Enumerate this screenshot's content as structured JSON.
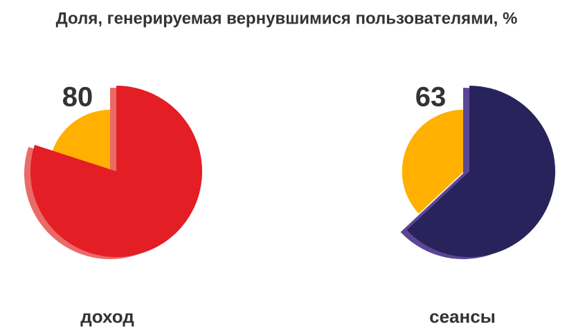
{
  "title": "Доля, генерируемая вернувшимися пользователями, %",
  "chart_data": [
    {
      "type": "pie",
      "label": "доход",
      "values": [
        80,
        20
      ],
      "colors": [
        "#e31e24",
        "#ffb000"
      ],
      "edge_color": "#ea6a68"
    },
    {
      "type": "pie",
      "label": "сеансы",
      "values": [
        63,
        37
      ],
      "colors": [
        "#28235a",
        "#ffb000"
      ],
      "edge_color": "#5b4596"
    }
  ]
}
